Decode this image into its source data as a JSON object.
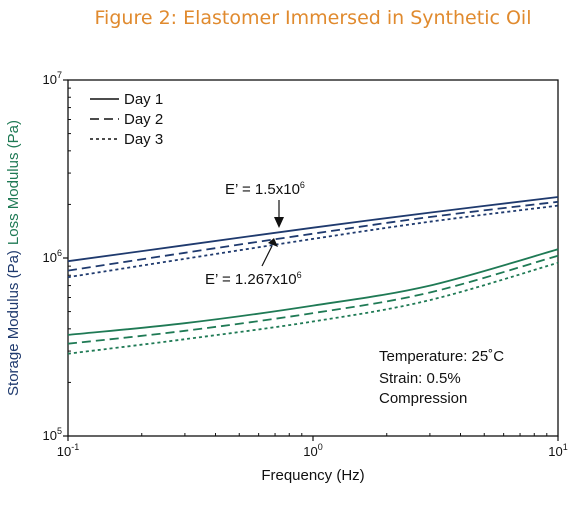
{
  "chart_data": {
    "type": "line",
    "title": "Figure 2: Elastomer Immersed in Synthetic Oil",
    "xlabel": "Frequency (Hz)",
    "ylabel_storage": "Storage Modulus (Pa)",
    "ylabel_loss": "Loss Modulus (Pa)",
    "x_scale": "log",
    "y_scale": "log",
    "xlim": [
      0.1,
      10
    ],
    "ylim": [
      100000,
      10000000
    ],
    "x_ticks": [
      {
        "value": 0.1,
        "base": "10",
        "exp": "-1"
      },
      {
        "value": 1,
        "base": "10",
        "exp": "0"
      },
      {
        "value": 10,
        "base": "10",
        "exp": "1"
      }
    ],
    "y_ticks": [
      {
        "value": 100000,
        "base": "10",
        "exp": "5"
      },
      {
        "value": 1000000,
        "base": "10",
        "exp": "6"
      },
      {
        "value": 10000000,
        "base": "10",
        "exp": "7"
      }
    ],
    "legend": [
      "Day 1",
      "Day 2",
      "Day 3"
    ],
    "legend_position": "top-left",
    "colors": {
      "storage": "#1f3a6e",
      "loss": "#1f7a55",
      "title": "#e08a2e"
    },
    "series": [
      {
        "name": "Day 1",
        "modulus": "storage",
        "style": "solid",
        "x": [
          0.1,
          0.3,
          1,
          3,
          10
        ],
        "y": [
          960000,
          1180000,
          1480000,
          1800000,
          2200000
        ]
      },
      {
        "name": "Day 2",
        "modulus": "storage",
        "style": "dashed",
        "x": [
          0.1,
          0.3,
          1,
          3,
          10
        ],
        "y": [
          850000,
          1070000,
          1370000,
          1700000,
          2070000
        ]
      },
      {
        "name": "Day 3",
        "modulus": "storage",
        "style": "dotted",
        "x": [
          0.1,
          0.3,
          1,
          3,
          10
        ],
        "y": [
          780000,
          990000,
          1280000,
          1600000,
          1970000
        ]
      },
      {
        "name": "Day 1",
        "modulus": "loss",
        "style": "solid",
        "x": [
          0.1,
          0.3,
          1,
          3,
          10
        ],
        "y": [
          370000,
          430000,
          540000,
          700000,
          1120000
        ]
      },
      {
        "name": "Day 2",
        "modulus": "loss",
        "style": "dashed",
        "x": [
          0.1,
          0.3,
          1,
          3,
          10
        ],
        "y": [
          330000,
          390000,
          490000,
          640000,
          1030000
        ]
      },
      {
        "name": "Day 3",
        "modulus": "loss",
        "style": "dotted",
        "x": [
          0.1,
          0.3,
          1,
          3,
          10
        ],
        "y": [
          290000,
          350000,
          440000,
          580000,
          940000
        ]
      }
    ],
    "annotations": [
      {
        "prefix": "E’ = 1.5x10",
        "sup": "6",
        "x": 0.75,
        "y": 1400000
      },
      {
        "prefix": "E’ = 1.267x10",
        "sup": "6",
        "x": 0.75,
        "y": 1210000
      }
    ],
    "info_lines": [
      "Temperature: 25˚C",
      "Strain: 0.5%",
      "Compression"
    ]
  }
}
